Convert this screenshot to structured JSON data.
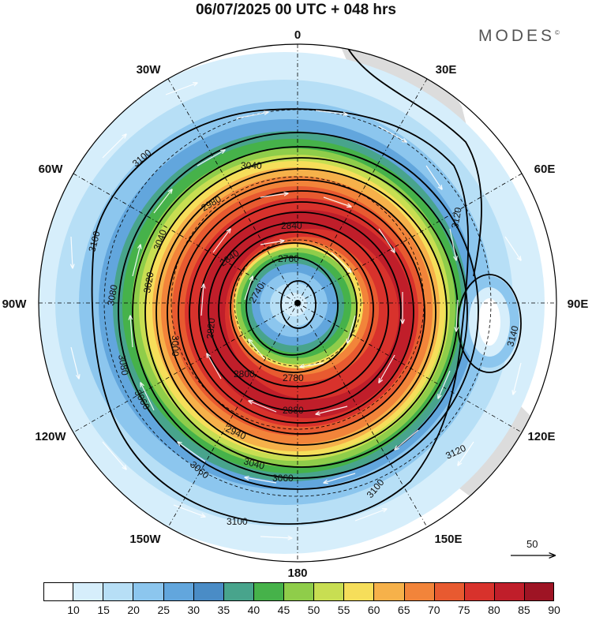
{
  "title": "06/07/2025  00 UTC  + 048 hrs",
  "brand": "MODES",
  "brand_mark": "©",
  "longitudes": {
    "lon_0": "0",
    "lon_30e": "30E",
    "lon_60e": "60E",
    "lon_90e": "90E",
    "lon_120e": "120E",
    "lon_150e": "150E",
    "lon_180": "180",
    "lon_150w": "150W",
    "lon_120w": "120W",
    "lon_90w": "90W",
    "lon_60w": "60W",
    "lon_30w": "30W"
  },
  "contours": {
    "c2740a": "2740",
    "c2760": "2760",
    "c2780": "2780",
    "c2800": "2800",
    "c2820": "2820",
    "c2840a": "2840",
    "c2840b": "2840",
    "c2860": "2860",
    "c2880": "2880",
    "c2900": "2900",
    "c2920": "2920",
    "c2940": "2940",
    "c2960": "2960",
    "c2980": "2980",
    "c3000": "3000",
    "c3020": "3020",
    "c3040a": "3040",
    "c3040b": "3040",
    "c3040c": "3040",
    "c3060a": "3060",
    "c3060b": "3060",
    "c3060c": "3060",
    "c3080a": "3080",
    "c3080b": "3080",
    "c3100a": "3100",
    "c3100b": "3100",
    "c3100c": "3100",
    "c3100d": "3100",
    "c3120a": "3120",
    "c3120b": "3120",
    "c3140": "3140"
  },
  "colorbar": {
    "ticks": [
      "10",
      "15",
      "20",
      "25",
      "30",
      "35",
      "40",
      "45",
      "50",
      "55",
      "60",
      "65",
      "70",
      "75",
      "80",
      "85",
      "90"
    ],
    "colors": [
      "#ffffff",
      "#d6eefb",
      "#b7dff6",
      "#8cc6ee",
      "#62a6dd",
      "#4a8cc6",
      "#48a48c",
      "#46b24a",
      "#8fcd4a",
      "#c8de52",
      "#f6de5a",
      "#f6b14a",
      "#f2843a",
      "#e85a30",
      "#d8322c",
      "#c01e2a",
      "#9e1424"
    ]
  },
  "ref_vector": {
    "value": "50"
  },
  "colors": {
    "land": "#dcdcdc",
    "ocean_bg": "#ffffff"
  }
}
